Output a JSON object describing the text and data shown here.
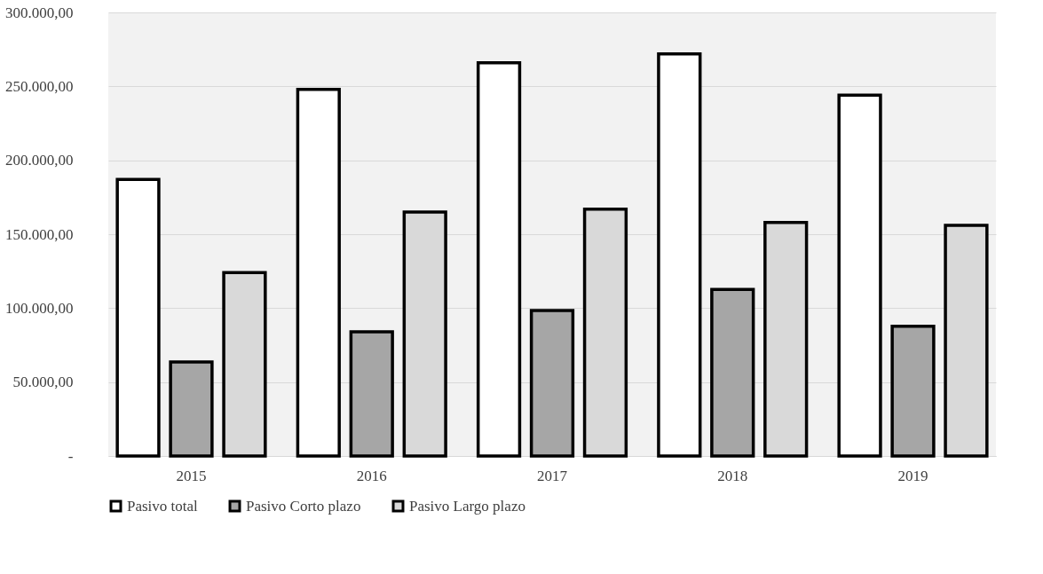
{
  "chart_data": {
    "type": "bar",
    "categories": [
      "2015",
      "2016",
      "2017",
      "2018",
      "2019"
    ],
    "series": [
      {
        "name": "Pasivo total",
        "color": "#ffffff",
        "values": [
          187000,
          248000,
          266000,
          272000,
          244000
        ]
      },
      {
        "name": "Pasivo Corto plazo",
        "color": "#a6a6a6",
        "values": [
          63600,
          84000,
          98400,
          112700,
          87800
        ]
      },
      {
        "name": "Pasivo Largo plazo",
        "color": "#d9d9d9",
        "values": [
          124000,
          165000,
          167000,
          158000,
          156000
        ]
      }
    ],
    "ylim": [
      0,
      300000
    ],
    "yticks": [
      {
        "value": 0,
        "label": "-"
      },
      {
        "value": 50000,
        "label": "50.000,00"
      },
      {
        "value": 100000,
        "label": "100.000,00"
      },
      {
        "value": 150000,
        "label": "150.000,00"
      },
      {
        "value": 200000,
        "label": "200.000,00"
      },
      {
        "value": 250000,
        "label": "250.000,00"
      },
      {
        "value": 300000,
        "label": "300.000,00"
      }
    ],
    "grid": "y",
    "legend": "bottom"
  }
}
